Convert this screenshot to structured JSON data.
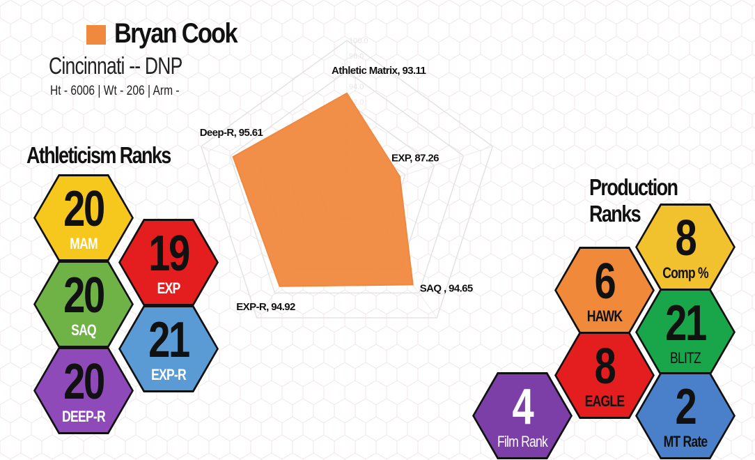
{
  "player": {
    "name": "Bryan Cook",
    "school": "Cincinnati -- DNP",
    "measurables": "Ht - 6006  |  Wt - 206  |  Arm -"
  },
  "colors": {
    "accent": "#F0883E",
    "mam": "#F6C71D",
    "exp": "#E41E1E",
    "saq": "#6FB346",
    "exp_r": "#5B9BD5",
    "deep_r": "#8E4AB9",
    "comp": "#F2C12E",
    "hawk": "#F08A3A",
    "blitz": "#19A64A",
    "eagle": "#E41E1E",
    "film": "#7C3FA8",
    "mt_rate": "#4A7FC9"
  },
  "athleticism": {
    "title": "Athleticism Ranks",
    "hexes": [
      {
        "key": "mam",
        "rank": "20",
        "label": "MAM"
      },
      {
        "key": "exp",
        "rank": "19",
        "label": "EXP"
      },
      {
        "key": "saq",
        "rank": "20",
        "label": "SAQ"
      },
      {
        "key": "exp_r",
        "rank": "21",
        "label": "EXP-R"
      },
      {
        "key": "deep_r",
        "rank": "20",
        "label": "DEEP-R"
      }
    ]
  },
  "production": {
    "title": "Production Ranks",
    "hexes": [
      {
        "key": "comp",
        "rank": "8",
        "label": "Comp %"
      },
      {
        "key": "hawk",
        "rank": "6",
        "label": "HAWK"
      },
      {
        "key": "blitz",
        "rank": "21",
        "label": "BLITZ"
      },
      {
        "key": "eagle",
        "rank": "8",
        "label": "EAGLE"
      },
      {
        "key": "film",
        "rank": "4",
        "label": "Film Rank"
      },
      {
        "key": "mt_rate",
        "rank": "2",
        "label": "MT Rate"
      }
    ]
  },
  "chart_data": {
    "type": "radar",
    "title": "",
    "axis_ticks": [
      "80.0",
      "82.0",
      "84.0",
      "86.0",
      "88.0",
      "90.0",
      "92.0",
      "94.0",
      "96.0",
      "98.0",
      "100.0"
    ],
    "range": [
      80,
      100
    ],
    "categories": [
      "Athletic Matrix",
      "EXP",
      "SAQ",
      "EXP-R",
      "Deep-R"
    ],
    "values": [
      93.11,
      87.26,
      94.65,
      94.92,
      95.61
    ],
    "point_labels": [
      "Athletic Matrix, 93.11",
      "EXP, 87.26",
      "SAQ , 94.65",
      "EXP-R, 94.92",
      "Deep-R, 95.61"
    ],
    "series": [
      {
        "values": [
          93.11,
          87.26,
          94.65,
          94.92,
          95.61
        ]
      }
    ]
  }
}
